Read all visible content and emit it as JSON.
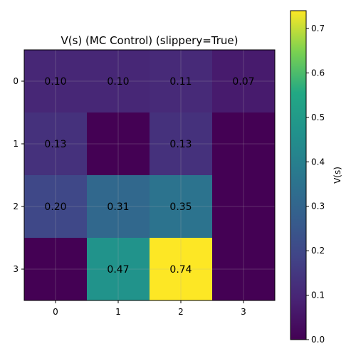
{
  "chart_data": {
    "type": "heatmap",
    "title": "V(s) (MC Control) (slippery=True)",
    "x_tick_labels": [
      "0",
      "1",
      "2",
      "3"
    ],
    "y_tick_labels": [
      "0",
      "1",
      "2",
      "3"
    ],
    "values": [
      [
        0.1,
        0.1,
        0.11,
        0.07
      ],
      [
        0.13,
        0.0,
        0.13,
        0.0
      ],
      [
        0.2,
        0.31,
        0.35,
        0.0
      ],
      [
        0.0,
        0.47,
        0.74,
        0.0
      ]
    ],
    "cell_labels": [
      [
        "0.10",
        "0.10",
        "0.11",
        "0.07"
      ],
      [
        "0.13",
        "",
        "0.13",
        ""
      ],
      [
        "0.20",
        "0.31",
        "0.35",
        ""
      ],
      [
        "",
        "0.47",
        "0.74",
        ""
      ]
    ],
    "colorbar": {
      "label": "V(s)",
      "range": [
        0.0,
        0.74
      ],
      "tick_values": [
        0.0,
        0.1,
        0.2,
        0.3,
        0.4,
        0.5,
        0.6,
        0.7
      ],
      "tick_labels": [
        "0.0",
        "0.1",
        "0.2",
        "0.3",
        "0.4",
        "0.5",
        "0.6",
        "0.7"
      ]
    },
    "colormap": "viridis",
    "grid": true
  }
}
